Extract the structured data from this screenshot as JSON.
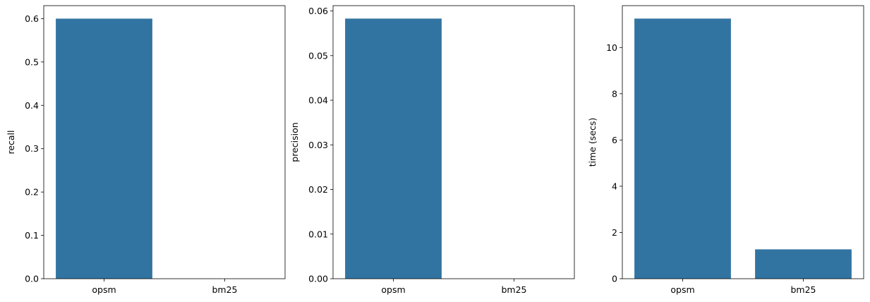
{
  "chart_data": [
    {
      "type": "bar",
      "categories": [
        "opsm",
        "bm25"
      ],
      "values": [
        0.6,
        0.0
      ],
      "ylabel": "recall",
      "xlabel": "",
      "ylim": [
        0,
        0.63
      ],
      "yticks": [
        0.0,
        0.1,
        0.2,
        0.3,
        0.4,
        0.5,
        0.6
      ],
      "ytick_labels": [
        "0.0",
        "0.1",
        "0.2",
        "0.3",
        "0.4",
        "0.5",
        "0.6"
      ],
      "bar_color": "#3274a1",
      "grid": false
    },
    {
      "type": "bar",
      "categories": [
        "opsm",
        "bm25"
      ],
      "values": [
        0.0583,
        0.0
      ],
      "ylabel": "precision",
      "xlabel": "",
      "ylim": [
        0,
        0.0612
      ],
      "yticks": [
        0.0,
        0.01,
        0.02,
        0.03,
        0.04,
        0.05,
        0.06
      ],
      "ytick_labels": [
        "0.00",
        "0.01",
        "0.02",
        "0.03",
        "0.04",
        "0.05",
        "0.06"
      ],
      "bar_color": "#3274a1",
      "grid": false
    },
    {
      "type": "bar",
      "categories": [
        "opsm",
        "bm25"
      ],
      "values": [
        11.25,
        1.27
      ],
      "ylabel": "time (secs)",
      "xlabel": "",
      "ylim": [
        0,
        11.81
      ],
      "yticks": [
        0,
        2,
        4,
        6,
        8,
        10
      ],
      "ytick_labels": [
        "0",
        "2",
        "4",
        "6",
        "8",
        "10"
      ],
      "bar_color": "#3274a1",
      "grid": false
    }
  ]
}
